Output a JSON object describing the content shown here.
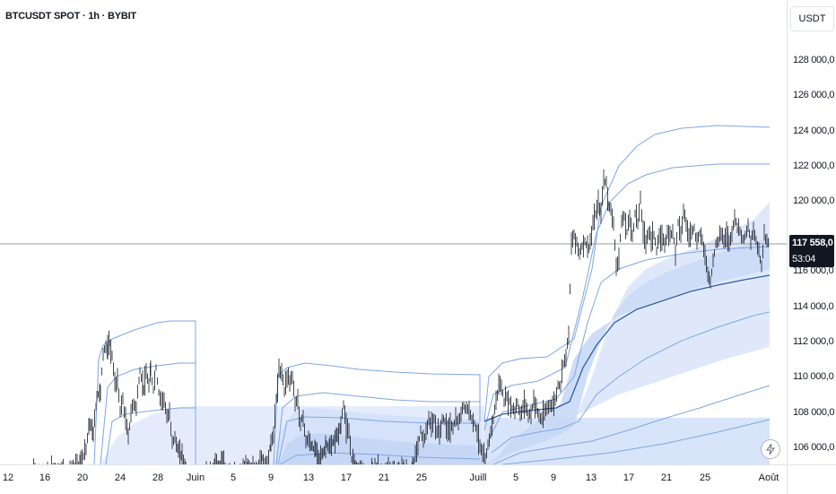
{
  "header": {
    "symbol_title": "BTCUSDT SPOT · 1h · BYBIT"
  },
  "price_axis": {
    "currency": "USDT",
    "ticks": [
      "128 000,0",
      "126 000,0",
      "124 000,0",
      "122 000,0",
      "120 000,0",
      "116 000,0",
      "114 000,0",
      "112 000,0",
      "110 000,0",
      "108 000,0",
      "106 000,0"
    ],
    "last_price": "117 558,0",
    "countdown": "53:04"
  },
  "time_axis": {
    "ticks": [
      "12",
      "16",
      "20",
      "24",
      "28",
      "Juin",
      "5",
      "9",
      "13",
      "17",
      "21",
      "25",
      "Juill",
      "5",
      "9",
      "13",
      "17",
      "21",
      "25",
      "Août"
    ]
  },
  "colors": {
    "candle": "#131722",
    "band_line": "#7fa6e6",
    "vwap_line": "#2f5ea6",
    "band_fill": "#dbe6fb",
    "band_fill_dark": "#c4d5f7",
    "price_line": "#9598a1"
  },
  "icons": {
    "alert": "lightning-icon"
  },
  "chart_data": {
    "type": "candlestick",
    "title": "BTCUSDT SPOT · 1h · BYBIT",
    "x_range": [
      "12",
      "Août"
    ],
    "ylim": [
      105000,
      129000
    ],
    "last_price": 117558.0,
    "series": [
      {
        "values": [
          [
            0,
            104000
          ],
          [
            15,
            104000
          ],
          [
            30,
            104200
          ],
          [
            45,
            104700
          ],
          [
            50,
            104300
          ],
          [
            60,
            104900
          ],
          [
            80,
            104600
          ],
          [
            90,
            105100
          ],
          [
            96,
            105900
          ],
          [
            100,
            107400
          ],
          [
            104,
            106800
          ],
          [
            108,
            108900
          ],
          [
            112,
            109200
          ],
          [
            115,
            111300
          ],
          [
            118,
            111800
          ],
          [
            120,
            111500
          ],
          [
            122,
            111900
          ],
          [
            125,
            111200
          ],
          [
            128,
            109600
          ],
          [
            131,
            109800
          ],
          [
            134,
            108100
          ],
          [
            137,
            108700
          ],
          [
            140,
            107500
          ],
          [
            143,
            106600
          ],
          [
            146,
            107900
          ],
          [
            149,
            108500
          ],
          [
            152,
            108300
          ],
          [
            156,
            110300
          ],
          [
            160,
            109400
          ],
          [
            163,
            110100
          ],
          [
            166,
            109500
          ],
          [
            168,
            110300
          ],
          [
            171,
            109300
          ],
          [
            174,
            110500
          ],
          [
            177,
            109100
          ],
          [
            180,
            108700
          ],
          [
            183,
            108800
          ],
          [
            186,
            107600
          ],
          [
            189,
            107900
          ],
          [
            192,
            106400
          ],
          [
            195,
            106500
          ],
          [
            199,
            105700
          ],
          [
            203,
            105500
          ],
          [
            207,
            104800
          ],
          [
            211,
            104200
          ],
          [
            220,
            104000
          ],
          [
            230,
            104600
          ],
          [
            236,
            104200
          ],
          [
            240,
            105400
          ],
          [
            244,
            104700
          ],
          [
            248,
            105200
          ],
          [
            252,
            104600
          ],
          [
            256,
            104900
          ],
          [
            260,
            104300
          ],
          [
            268,
            104400
          ],
          [
            276,
            104900
          ],
          [
            284,
            104700
          ],
          [
            292,
            105400
          ],
          [
            298,
            105100
          ],
          [
            302,
            106200
          ],
          [
            305,
            106800
          ],
          [
            308,
            108700
          ],
          [
            311,
            110300
          ],
          [
            314,
            110400
          ],
          [
            317,
            109200
          ],
          [
            320,
            110100
          ],
          [
            323,
            109800
          ],
          [
            326,
            110000
          ],
          [
            329,
            108500
          ],
          [
            332,
            108700
          ],
          [
            335,
            107300
          ],
          [
            338,
            107800
          ],
          [
            341,
            106300
          ],
          [
            344,
            106400
          ],
          [
            348,
            106000
          ],
          [
            352,
            105800
          ],
          [
            356,
            105400
          ],
          [
            360,
            105600
          ],
          [
            364,
            106200
          ],
          [
            368,
            105900
          ],
          [
            372,
            106300
          ],
          [
            376,
            106700
          ],
          [
            380,
            107200
          ],
          [
            383,
            108500
          ],
          [
            386,
            107100
          ],
          [
            389,
            106700
          ],
          [
            392,
            105400
          ],
          [
            396,
            105100
          ],
          [
            400,
            104800
          ],
          [
            405,
            104500
          ],
          [
            410,
            104300
          ],
          [
            415,
            104500
          ],
          [
            420,
            104900
          ],
          [
            425,
            104600
          ],
          [
            430,
            104500
          ],
          [
            435,
            104700
          ],
          [
            440,
            104500
          ],
          [
            445,
            104700
          ],
          [
            450,
            104900
          ],
          [
            455,
            104500
          ],
          [
            460,
            104600
          ],
          [
            463,
            105500
          ],
          [
            466,
            106100
          ],
          [
            469,
            106900
          ],
          [
            472,
            106500
          ],
          [
            475,
            106700
          ],
          [
            478,
            107700
          ],
          [
            481,
            107200
          ],
          [
            484,
            107600
          ],
          [
            487,
            106900
          ],
          [
            490,
            106800
          ],
          [
            493,
            107600
          ],
          [
            496,
            107500
          ],
          [
            499,
            106900
          ],
          [
            502,
            107200
          ],
          [
            505,
            107100
          ],
          [
            508,
            107600
          ],
          [
            511,
            107300
          ],
          [
            514,
            107900
          ],
          [
            517,
            108400
          ],
          [
            520,
            108200
          ],
          [
            523,
            108100
          ],
          [
            526,
            107700
          ],
          [
            529,
            107400
          ],
          [
            532,
            106800
          ],
          [
            535,
            106200
          ],
          [
            538,
            105500
          ],
          [
            541,
            105300
          ],
          [
            544,
            106000
          ],
          [
            547,
            107000
          ],
          [
            550,
            107600
          ],
          [
            553,
            108600
          ],
          [
            556,
            109600
          ],
          [
            559,
            109400
          ],
          [
            562,
            108600
          ],
          [
            565,
            108800
          ],
          [
            568,
            108600
          ],
          [
            571,
            108200
          ],
          [
            574,
            108100
          ],
          [
            577,
            108500
          ],
          [
            580,
            107800
          ],
          [
            583,
            108300
          ],
          [
            586,
            108500
          ],
          [
            589,
            107800
          ],
          [
            592,
            107900
          ],
          [
            595,
            108700
          ],
          [
            598,
            108300
          ],
          [
            601,
            107700
          ],
          [
            604,
            107600
          ],
          [
            607,
            107900
          ],
          [
            610,
            108200
          ],
          [
            613,
            108500
          ],
          [
            616,
            108300
          ],
          [
            619,
            108700
          ],
          [
            622,
            109500
          ],
          [
            625,
            109600
          ],
          [
            628,
            110800
          ],
          [
            631,
            111300
          ],
          [
            634,
            112500
          ],
          [
            637,
            117500
          ],
          [
            640,
            118000
          ],
          [
            643,
            117700
          ],
          [
            646,
            117000
          ],
          [
            649,
            117400
          ],
          [
            652,
            117800
          ],
          [
            655,
            117200
          ],
          [
            658,
            117600
          ],
          [
            661,
            118600
          ],
          [
            664,
            119200
          ],
          [
            667,
            119800
          ],
          [
            670,
            119300
          ],
          [
            673,
            121200
          ],
          [
            676,
            121000
          ],
          [
            678,
            119800
          ],
          [
            681,
            119600
          ],
          [
            684,
            118600
          ],
          [
            687,
            116300
          ],
          [
            690,
            116900
          ],
          [
            693,
            118700
          ],
          [
            696,
            119100
          ],
          [
            699,
            118200
          ],
          [
            702,
            119100
          ],
          [
            705,
            117900
          ],
          [
            708,
            119300
          ],
          [
            711,
            118800
          ],
          [
            714,
            120000
          ],
          [
            717,
            118400
          ],
          [
            720,
            117600
          ],
          [
            723,
            118300
          ],
          [
            726,
            117900
          ],
          [
            729,
            118100
          ],
          [
            732,
            117200
          ],
          [
            735,
            117800
          ],
          [
            738,
            118000
          ],
          [
            741,
            117500
          ],
          [
            744,
            118300
          ],
          [
            747,
            117900
          ],
          [
            750,
            118400
          ],
          [
            753,
            117100
          ],
          [
            756,
            118800
          ],
          [
            759,
            118200
          ],
          [
            762,
            119400
          ],
          [
            765,
            118700
          ],
          [
            768,
            117900
          ],
          [
            771,
            118300
          ],
          [
            774,
            118500
          ],
          [
            777,
            117600
          ],
          [
            780,
            118100
          ],
          [
            783,
            117800
          ],
          [
            786,
            117000
          ],
          [
            789,
            115800
          ],
          [
            792,
            115400
          ],
          [
            795,
            116600
          ],
          [
            798,
            117600
          ],
          [
            801,
            117700
          ],
          [
            804,
            118200
          ],
          [
            807,
            117800
          ],
          [
            810,
            118100
          ],
          [
            813,
            117600
          ],
          [
            816,
            118300
          ],
          [
            819,
            119000
          ],
          [
            822,
            118600
          ],
          [
            825,
            118300
          ],
          [
            828,
            117800
          ],
          [
            831,
            118100
          ],
          [
            834,
            118500
          ],
          [
            837,
            117600
          ],
          [
            840,
            118300
          ],
          [
            843,
            117700
          ],
          [
            846,
            117200
          ],
          [
            849,
            116200
          ],
          [
            852,
            118200
          ],
          [
            855,
            117700
          ],
          [
            858,
            117560
          ]
        ]
      }
    ]
  }
}
